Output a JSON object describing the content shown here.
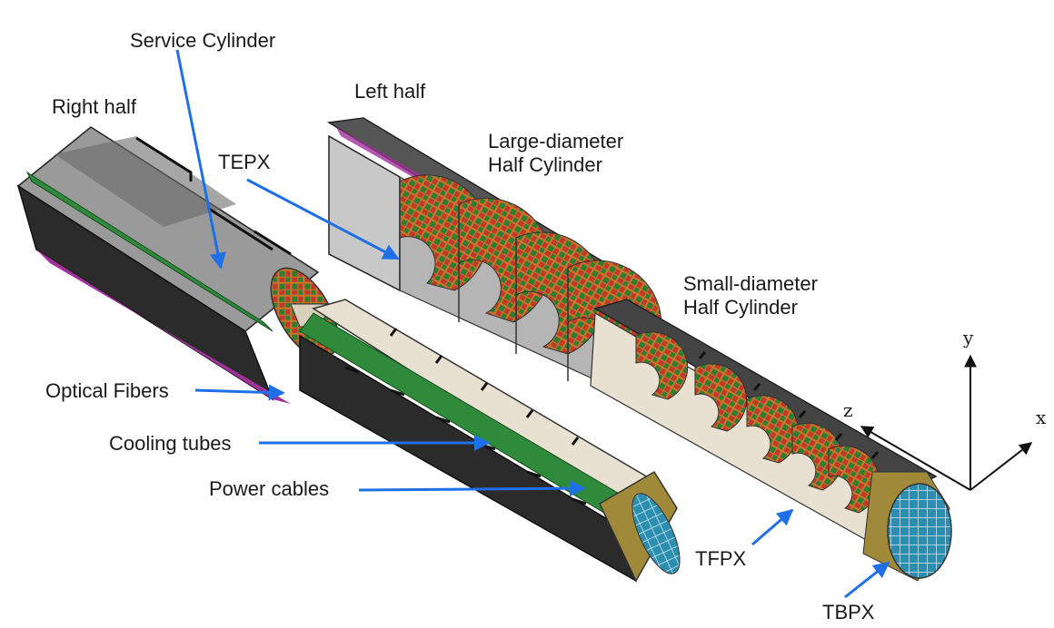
{
  "labels": {
    "service_cylinder": "Service Cylinder",
    "right_half": "Right half",
    "left_half": "Left half",
    "tepx": "TEPX",
    "large_diameter_line1": "Large-diameter",
    "large_diameter_line2": "Half Cylinder",
    "small_diameter_line1": "Small-diameter",
    "small_diameter_line2": "Half Cylinder",
    "optical_fibers": "Optical Fibers",
    "cooling_tubes": "Cooling tubes",
    "power_cables": "Power cables",
    "tfpx": "TFPX",
    "tbpx": "TBPX"
  },
  "axes": {
    "y": "y",
    "z": "z",
    "x": "x"
  },
  "colors": {
    "arrow": "#1e6fe8",
    "cylinder_dark": "#2b2b2b",
    "cylinder_grey": "#8c8c8c",
    "cylinder_light": "#e8e1d2",
    "green_band": "#2f8a3c",
    "module_green": "#2e7d32",
    "module_red": "#c0392b",
    "module_orange": "#c9762b",
    "gold": "#a08a3a",
    "cyan": "#2d8fb0",
    "magenta": "#a0309a"
  }
}
